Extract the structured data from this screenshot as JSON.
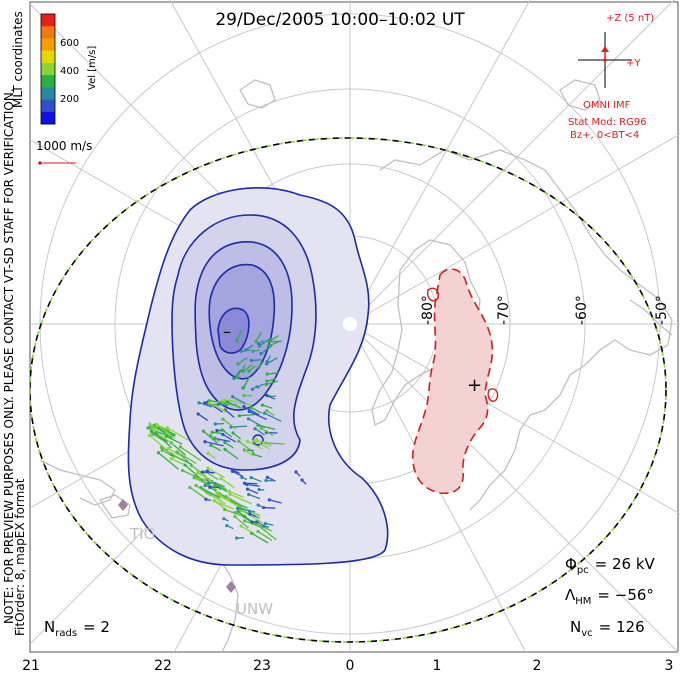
{
  "title": "29/Dec/2005 10:00–10:02 UT",
  "coord_system": "MLT coordinates",
  "side_note_line1": "NOTE: FOR PREVIEW PURPOSES ONLY. PLEASE CONTACT VT-SD STAFF FOR VERIFICATION.",
  "side_note_line2": "FitOrder: 8, mapEX format",
  "colorbar": {
    "label": "Vel [m/s]",
    "ticks": [
      "600",
      "400",
      "200"
    ],
    "colors": [
      "#e8201a",
      "#f07818",
      "#f0a000",
      "#e8d800",
      "#8ad43a",
      "#2ab040",
      "#2a88a0",
      "#3050c8",
      "#1010e8"
    ]
  },
  "vector_scale": {
    "label": "1000 m/s",
    "color": "#d02020"
  },
  "imf": {
    "z_label": "+Z (5 nT)",
    "y_label": "+Y",
    "source": "OMNI IMF",
    "model": "Stat Mod: RG96",
    "condition": "Bz+, 0<BT<4",
    "color": "#e02020"
  },
  "lat_labels": [
    "-80°",
    "-70°",
    "-60°",
    "-50°"
  ],
  "mlt_labels": [
    "21",
    "22",
    "23",
    "0",
    "1",
    "2",
    "3"
  ],
  "stations": [
    "TIG",
    "UNW"
  ],
  "stats": {
    "phi_symbol": "Φ",
    "phi_sub": "pc",
    "phi_value": "= 26 kV",
    "lambda_symbol": "Λ",
    "lambda_sub": "HM",
    "lambda_value": "= −56°",
    "nvc_symbol": "N",
    "nvc_sub": "vc",
    "nvc_value": "= 126"
  },
  "nrads": {
    "symbol": "N",
    "sub": "rads",
    "value": "= 2"
  },
  "cell_markers": {
    "negative": "–",
    "positive": "+"
  },
  "colors": {
    "negative_cell_stroke": "#1a2aa8",
    "negative_cell_fill": "#6a6ae0",
    "positive_cell_stroke": "#cc2020",
    "positive_cell_fill": "#f4c4c4",
    "boundary_green": "#8ad43a",
    "grid": "#c8c8d0",
    "coast": "#c0c0c0"
  }
}
